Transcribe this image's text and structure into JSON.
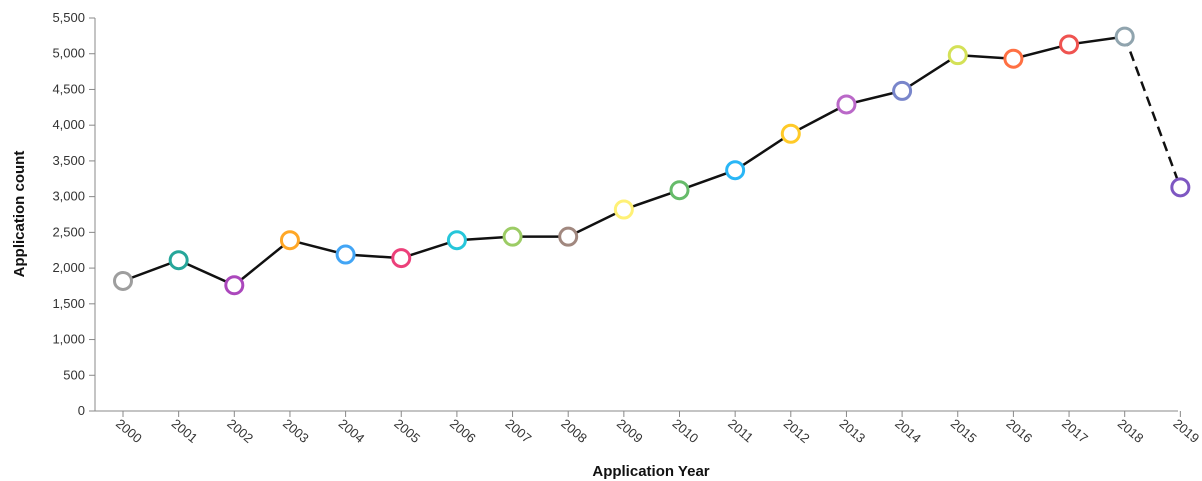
{
  "chart_data": {
    "type": "line",
    "title": "",
    "xlabel": "Application Year",
    "ylabel": "Application count",
    "ylim": [
      0,
      5500
    ],
    "yticks": [
      "0",
      "500",
      "1,000",
      "1,500",
      "2,000",
      "2,500",
      "3,000",
      "3,500",
      "4,000",
      "4,500",
      "5,000",
      "5,500"
    ],
    "ytick_values": [
      0,
      500,
      1000,
      1500,
      2000,
      2500,
      3000,
      3500,
      4000,
      4500,
      5000,
      5500
    ],
    "categories": [
      "2000",
      "2001",
      "2002",
      "2003",
      "2004",
      "2005",
      "2006",
      "2007",
      "2008",
      "2009",
      "2010",
      "2011",
      "2012",
      "2013",
      "2014",
      "2015",
      "2016",
      "2017",
      "2018",
      "2019"
    ],
    "values": [
      1820,
      2110,
      1760,
      2390,
      2190,
      2140,
      2390,
      2440,
      2440,
      2820,
      3090,
      3370,
      3880,
      4290,
      4480,
      4980,
      4930,
      5130,
      5240,
      3130
    ],
    "point_colors": [
      "#9e9e9e",
      "#26a69a",
      "#ab47bc",
      "#ffa726",
      "#42a5f5",
      "#ec407a",
      "#26c6da",
      "#9ccc65",
      "#a1887f",
      "#fff176",
      "#66bb6a",
      "#29b6f6",
      "#ffca28",
      "#ba68c8",
      "#7986cb",
      "#d4e157",
      "#ff7043",
      "#ef5350",
      "#90a4ae",
      "#7e57c2"
    ],
    "dashed_segment_from": "2018",
    "dashed_segment_to": "2019",
    "grid": false,
    "legend": "none"
  }
}
